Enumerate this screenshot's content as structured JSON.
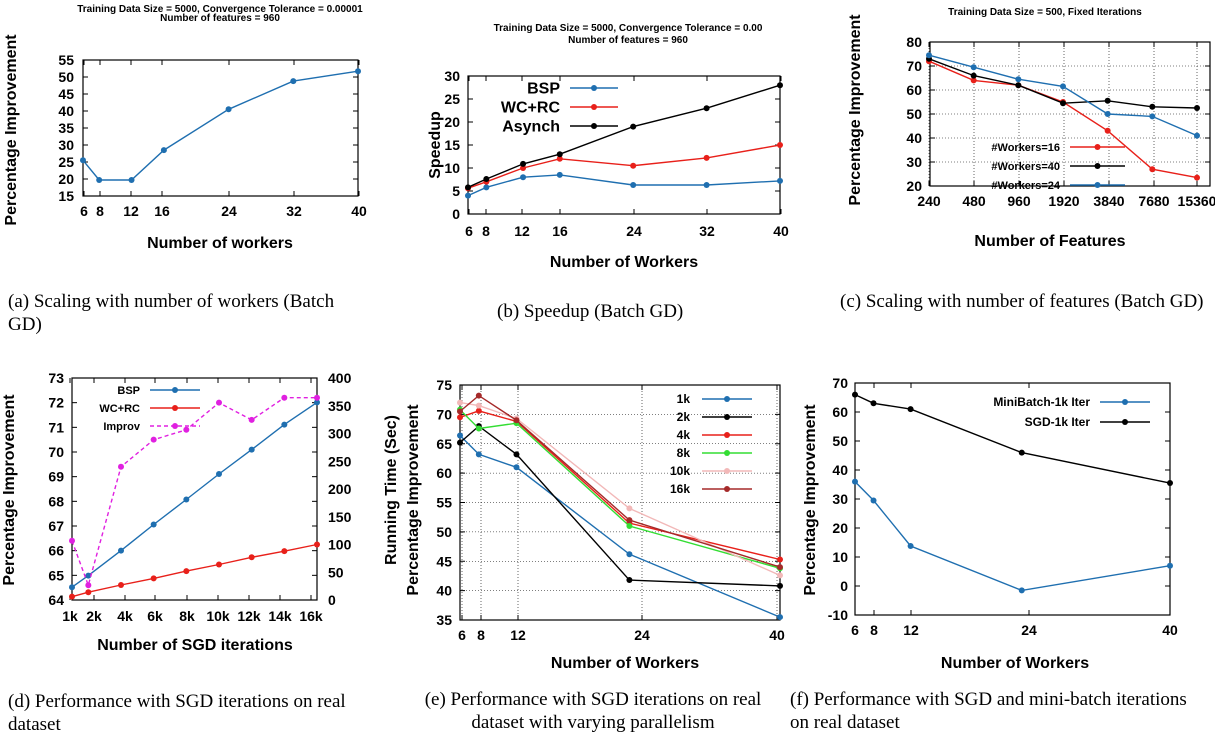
{
  "chart_data": [
    {
      "id": "a",
      "type": "line",
      "title": "Training Data Size = 5000, Convergence Tolerance = 0.00001",
      "subtitle": "Number of features = 960",
      "xlabel": "Number of workers",
      "ylabel": "Percentage Improvement",
      "xlim": [
        6,
        40
      ],
      "ylim": [
        15,
        55
      ],
      "xticks": [
        "6",
        "8",
        "12",
        "16",
        "24",
        "32",
        "40"
      ],
      "yticks": [
        "15",
        "20",
        "25",
        "30",
        "35",
        "40",
        "45",
        "50",
        "55"
      ],
      "series": [
        {
          "name": "",
          "color": "#1f6fb0",
          "x": [
            6,
            8,
            12,
            16,
            24,
            32,
            40
          ],
          "y": [
            25.5,
            19.7,
            19.7,
            28.5,
            40.5,
            48.8,
            51.7
          ]
        }
      ],
      "caption": "(a) Scaling with number of workers (Batch GD)"
    },
    {
      "id": "b",
      "type": "line",
      "title": "Training Data Size = 5000, Convergence Tolerance = 0.00",
      "subtitle": "Number of features = 960",
      "xlabel": "Number of Workers",
      "ylabel": "Speedup",
      "xlim": [
        6,
        40
      ],
      "ylim": [
        0,
        30
      ],
      "xticks": [
        "6",
        "8",
        "12",
        "16",
        "24",
        "32",
        "40"
      ],
      "yticks": [
        "0",
        "5",
        "10",
        "15",
        "20",
        "25",
        "30"
      ],
      "legend": "top-left",
      "series": [
        {
          "name": "BSP",
          "color": "#1f6fb0",
          "x": [
            6,
            8,
            12,
            16,
            24,
            32,
            40
          ],
          "y": [
            4.0,
            5.8,
            8.0,
            8.5,
            6.3,
            6.3,
            7.2
          ]
        },
        {
          "name": "WC+RC",
          "color": "#e8201a",
          "x": [
            6,
            8,
            12,
            16,
            24,
            32,
            40
          ],
          "y": [
            5.6,
            7.0,
            10.0,
            12.0,
            10.5,
            12.2,
            15.0
          ]
        },
        {
          "name": "Asynch",
          "color": "#000000",
          "x": [
            6,
            8,
            12,
            16,
            24,
            32,
            40
          ],
          "y": [
            5.8,
            7.6,
            10.9,
            13.0,
            19.0,
            23.0,
            28.0
          ]
        }
      ],
      "caption": "(b) Speedup (Batch GD)"
    },
    {
      "id": "c",
      "type": "line",
      "title": "Training Data Size = 500, Fixed Iterations",
      "subtitle": "",
      "xlabel": "Number of Features",
      "ylabel": "Percentage Improvement",
      "xscale": "log2",
      "ylim": [
        20,
        80
      ],
      "xticks": [
        "240",
        "480",
        "960",
        "1920",
        "3840",
        "7680",
        "15360"
      ],
      "yticks": [
        "20",
        "30",
        "40",
        "50",
        "60",
        "70",
        "80"
      ],
      "legend": "center",
      "series": [
        {
          "name": "#Workers=16",
          "color": "#e8201a",
          "x": [
            240,
            480,
            960,
            1920,
            3840,
            7680,
            15360
          ],
          "y": [
            72.0,
            64.0,
            62.0,
            55.0,
            43.0,
            27.0,
            23.5
          ]
        },
        {
          "name": "#Workers=40",
          "color": "#000000",
          "x": [
            240,
            480,
            960,
            1920,
            3840,
            7680,
            15360
          ],
          "y": [
            73.0,
            66.0,
            62.0,
            54.5,
            55.5,
            53.0,
            52.5
          ]
        },
        {
          "name": "#Workers=24",
          "color": "#1f6fb0",
          "x": [
            240,
            480,
            960,
            1920,
            3840,
            7680,
            15360
          ],
          "y": [
            74.5,
            69.5,
            64.5,
            61.5,
            50.0,
            49.0,
            41.0
          ]
        }
      ],
      "caption": "(c) Scaling with number of features (Batch GD)"
    },
    {
      "id": "d",
      "type": "line",
      "title": "",
      "xlabel": "Number of SGD iterations",
      "ylabel": "Percentage Improvement",
      "y2label": "Running Time (Sec)",
      "xlim": [
        1,
        16
      ],
      "ylim": [
        64,
        73
      ],
      "y2lim": [
        0,
        400
      ],
      "xticks": [
        "1k",
        "2k",
        "4k",
        "6k",
        "8k",
        "10k",
        "12k",
        "14k",
        "16k"
      ],
      "yticks": [
        "64",
        "65",
        "66",
        "67",
        "68",
        "69",
        "70",
        "71",
        "72",
        "73"
      ],
      "y2ticks": [
        "0",
        "50",
        "100",
        "150",
        "200",
        "250",
        "300",
        "350",
        "400"
      ],
      "legend": "top-left",
      "series": [
        {
          "name": "BSP",
          "color": "#1f6fb0",
          "axis": "y2",
          "x": [
            1,
            2,
            4,
            6,
            8,
            10,
            12,
            14,
            16
          ],
          "y": [
            23,
            44,
            89,
            136,
            181,
            227,
            271,
            316,
            356
          ]
        },
        {
          "name": "WC+RC",
          "color": "#e8201a",
          "axis": "y2",
          "x": [
            1,
            2,
            4,
            6,
            8,
            10,
            12,
            14,
            16
          ],
          "y": [
            6,
            14,
            27,
            39,
            52,
            64,
            77,
            88,
            100
          ]
        },
        {
          "name": "Improv",
          "color": "#e020e0",
          "axis": "y",
          "dash": true,
          "x": [
            1,
            2,
            4,
            6,
            8,
            10,
            12,
            14,
            16
          ],
          "y": [
            66.4,
            64.6,
            69.4,
            70.5,
            70.9,
            72.0,
            71.3,
            72.2,
            72.2
          ]
        }
      ],
      "caption": "(d) Performance with SGD iterations on real dataset"
    },
    {
      "id": "e",
      "type": "line",
      "title": "",
      "xlabel": "Number of Workers",
      "ylabel": "Percentage Improvement",
      "xlim": [
        6,
        40
      ],
      "ylim": [
        35,
        75
      ],
      "xticks": [
        "6",
        "8",
        "12",
        "24",
        "40"
      ],
      "yticks": [
        "35",
        "40",
        "45",
        "50",
        "55",
        "60",
        "65",
        "70",
        "75"
      ],
      "legend": "top-right",
      "series": [
        {
          "name": "1k",
          "color": "#1f6fb0",
          "x": [
            6,
            8,
            12,
            24,
            40
          ],
          "y": [
            66.4,
            63.2,
            61.0,
            46.2,
            35.5
          ]
        },
        {
          "name": "2k",
          "color": "#000000",
          "x": [
            6,
            8,
            12,
            24,
            40
          ],
          "y": [
            65.2,
            68.0,
            63.2,
            41.8,
            40.8
          ]
        },
        {
          "name": "4k",
          "color": "#e8201a",
          "x": [
            6,
            8,
            12,
            24,
            40
          ],
          "y": [
            69.5,
            70.6,
            68.8,
            51.5,
            45.3
          ]
        },
        {
          "name": "8k",
          "color": "#33dd33",
          "x": [
            6,
            8,
            12,
            24,
            40
          ],
          "y": [
            70.8,
            67.6,
            68.5,
            51.0,
            43.8
          ]
        },
        {
          "name": "10k",
          "color": "#f2b8b8",
          "x": [
            6,
            8,
            12,
            24,
            40
          ],
          "y": [
            72.0,
            71.5,
            69.3,
            54.0,
            42.6
          ]
        },
        {
          "name": "16k",
          "color": "#a52a2a",
          "x": [
            6,
            8,
            12,
            24,
            40
          ],
          "y": [
            70.5,
            73.2,
            69.0,
            52.0,
            44.0
          ]
        }
      ],
      "caption": "(e) Performance with SGD iterations on real dataset with varying parallelism"
    },
    {
      "id": "f",
      "type": "line",
      "title": "",
      "xlabel": "Number of Workers",
      "ylabel": "Percentage Improvement",
      "xlim": [
        6,
        40
      ],
      "ylim": [
        -10,
        70
      ],
      "xticks": [
        "6",
        "8",
        "12",
        "24",
        "40"
      ],
      "yticks": [
        "-10",
        "0",
        "10",
        "20",
        "30",
        "40",
        "50",
        "60",
        "70"
      ],
      "legend": "top-right",
      "series": [
        {
          "name": "MiniBatch-1k Iter",
          "color": "#1f6fb0",
          "x": [
            6,
            8,
            12,
            24,
            40
          ],
          "y": [
            36.0,
            29.5,
            13.8,
            -1.5,
            7.0
          ]
        },
        {
          "name": "SGD-1k Iter",
          "color": "#000000",
          "x": [
            6,
            8,
            12,
            24,
            40
          ],
          "y": [
            66.0,
            63.0,
            61.0,
            46.0,
            35.5
          ]
        }
      ],
      "caption": "(f) Performance with SGD and mini-batch iterations on real dataset"
    }
  ]
}
